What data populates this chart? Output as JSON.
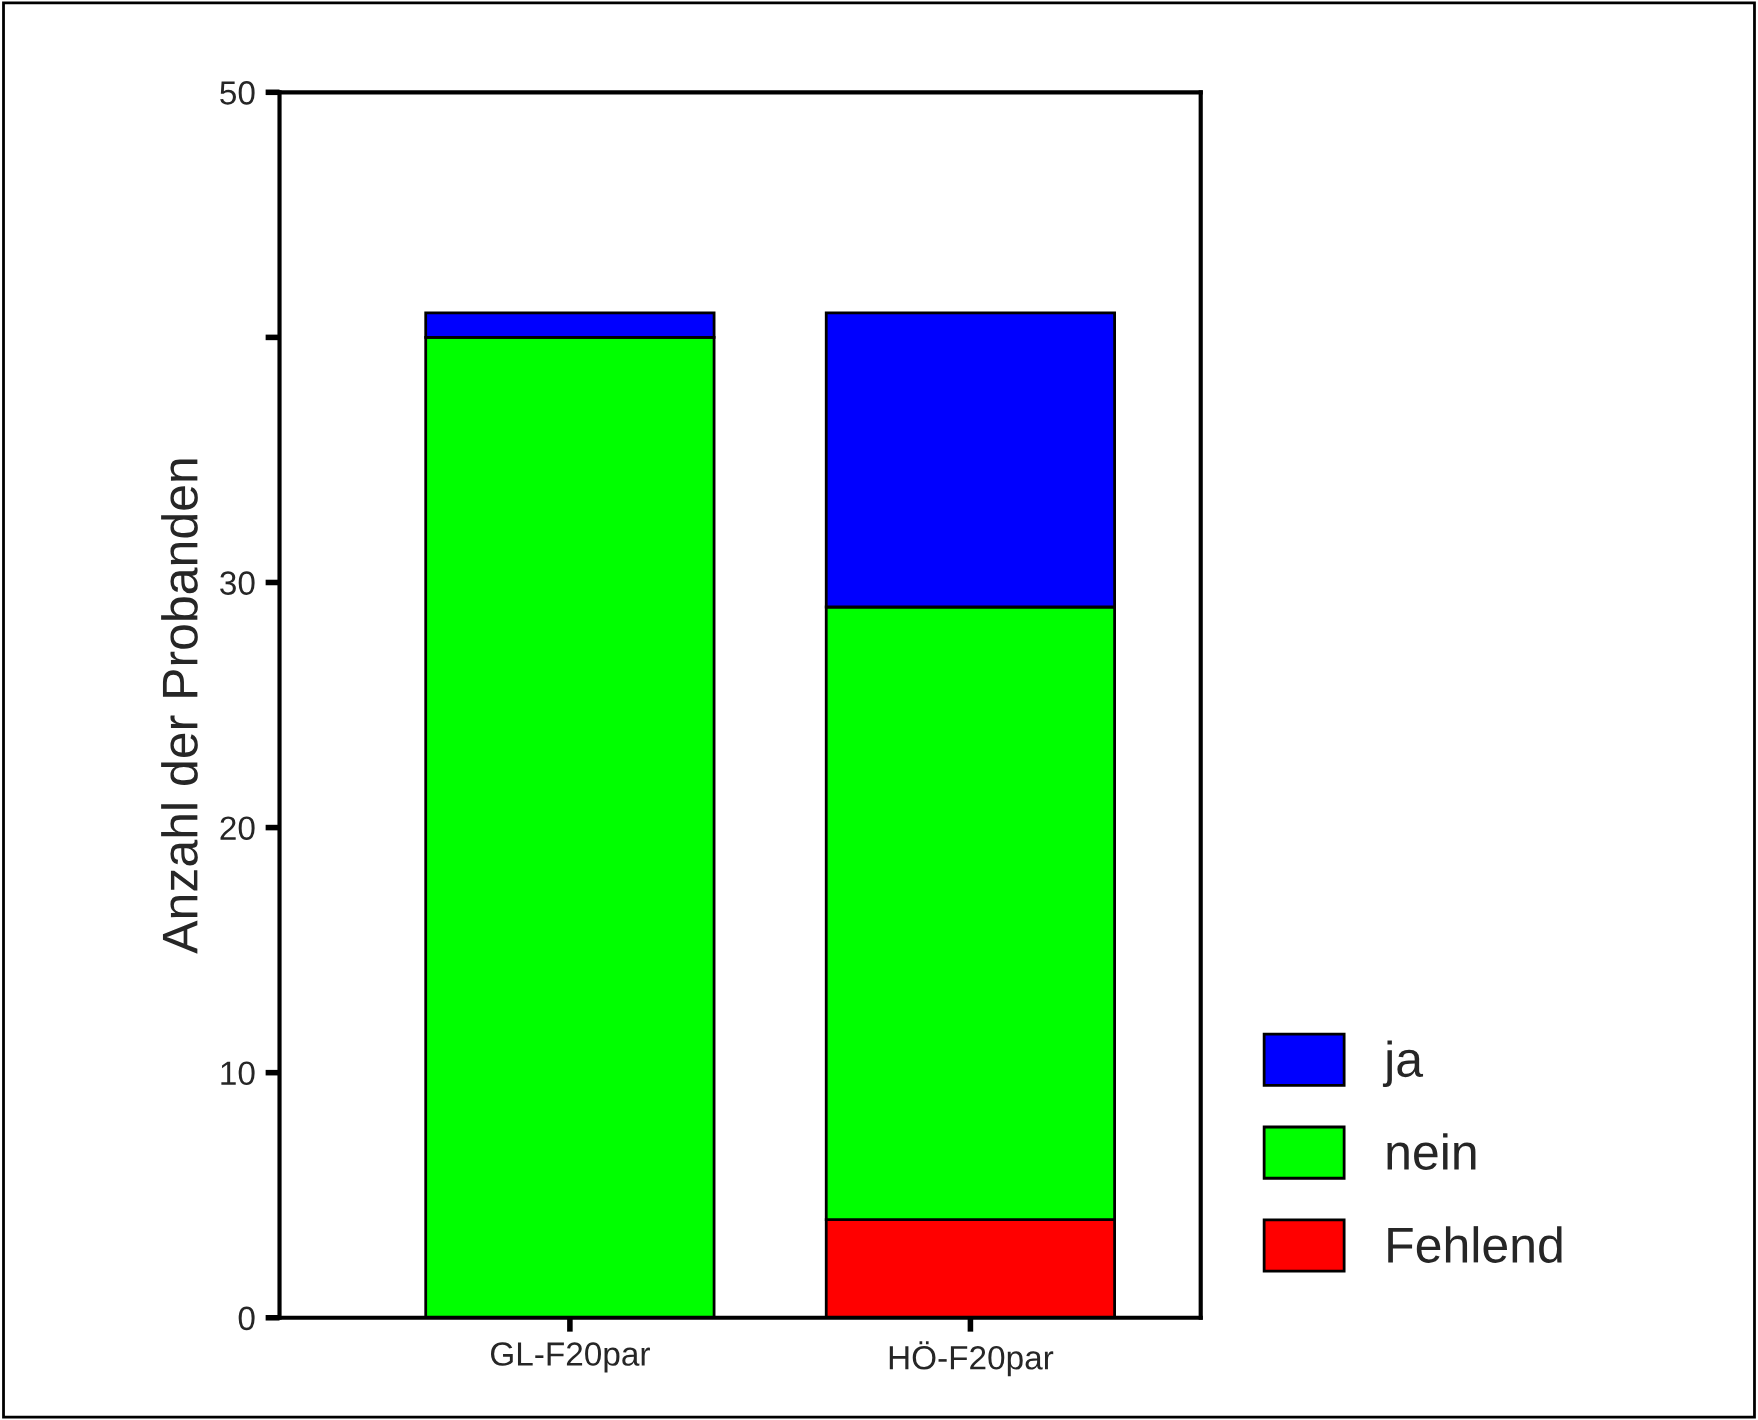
{
  "chart_data": {
    "type": "bar",
    "stacked": true,
    "ylabel": "Anzahl der Probanden",
    "categories": [
      "GL-F20par",
      "HÖ-F20par"
    ],
    "series": [
      {
        "name": "Fehlend",
        "color": "#ff0000",
        "values": [
          0,
          4
        ]
      },
      {
        "name": "nein",
        "color": "#00ff00",
        "values": [
          40,
          25
        ]
      },
      {
        "name": "ja",
        "color": "#0000ff",
        "values": [
          1,
          12
        ]
      }
    ],
    "ylim": [
      0,
      50
    ],
    "yticks": [
      0,
      10,
      20,
      30,
      {
        "value": 40,
        "label": null
      },
      50
    ],
    "grid": false,
    "legend": "bottom right"
  }
}
